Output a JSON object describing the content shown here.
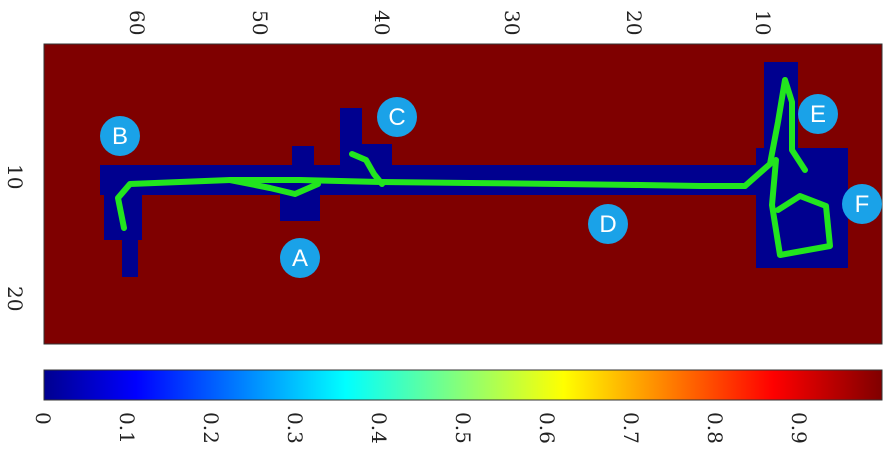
{
  "map": {
    "background_color": "#7f0000",
    "free_space_color": "#00008f",
    "trajectory_color": "#22e51e",
    "marker_color": "#1aa2e8",
    "x_ticks": [
      "60",
      "50",
      "40",
      "30",
      "20",
      "10"
    ],
    "y_ticks": [
      "10",
      "20"
    ],
    "markers": [
      {
        "label": "A"
      },
      {
        "label": "B"
      },
      {
        "label": "C"
      },
      {
        "label": "D"
      },
      {
        "label": "E"
      },
      {
        "label": "F"
      }
    ]
  },
  "colorbar": {
    "colormap": "jet",
    "range": [
      0,
      1
    ],
    "ticks": [
      "0",
      "0.1",
      "0.2",
      "0.3",
      "0.4",
      "0.5",
      "0.6",
      "0.7",
      "0.8",
      "0.9"
    ]
  }
}
